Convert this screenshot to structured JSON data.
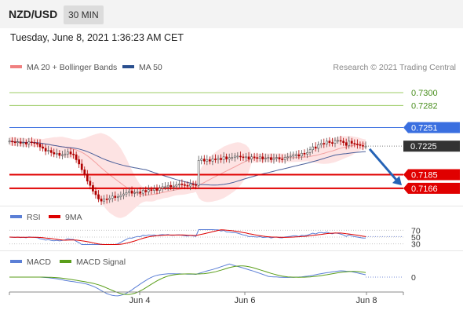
{
  "header": {
    "symbol": "NZD/USD",
    "timeframe": "30 MIN"
  },
  "datetime": "Tuesday, June 8, 2021 1:36:23 AM CET",
  "legend_main": [
    {
      "label": "MA 20 + Bollinger Bands",
      "color": "#f08080"
    },
    {
      "label": "MA 50",
      "color": "#2a4f8f"
    }
  ],
  "credit": "Research © 2021 Trading Central",
  "legend_rsi": [
    {
      "label": "RSI",
      "color": "#5b7fd6"
    },
    {
      "label": "9MA",
      "color": "#dd0000"
    }
  ],
  "legend_macd": [
    {
      "label": "MACD",
      "color": "#5b7fd6"
    },
    {
      "label": "MACD Signal",
      "color": "#5a9e1a"
    }
  ],
  "colors": {
    "resistance_green": "#9ccc65",
    "resistance_blue": "#3a6fe0",
    "support_red": "#e00000",
    "candle_up": "#555555",
    "candle_down": "#b00000",
    "band_fill": "#fde3e3",
    "arrow": "#2563b6"
  },
  "chart_data": {
    "type": "candlestick",
    "price_range": [
      0.7146,
      0.7322
    ],
    "levels": [
      {
        "value": 0.73,
        "label": "0.7300",
        "kind": "resistance-2",
        "color": "#9ccc65"
      },
      {
        "value": 0.7282,
        "label": "0.7282",
        "kind": "resistance-1",
        "color": "#9ccc65"
      },
      {
        "value": 0.7251,
        "label": "0.7251",
        "kind": "pivot",
        "color": "#3a6fe0"
      },
      {
        "value": 0.7225,
        "label": "0.7225",
        "kind": "last-price",
        "color": "#333333"
      },
      {
        "value": 0.7185,
        "label": "0.7185",
        "kind": "support-1",
        "color": "#e00000"
      },
      {
        "value": 0.7166,
        "label": "0.7166",
        "kind": "support-2",
        "color": "#e00000"
      }
    ],
    "x_ticks": [
      "Jun 4",
      "Jun 6",
      "Jun 8"
    ],
    "close": [
      0.7232,
      0.7231,
      0.723,
      0.7231,
      0.7229,
      0.723,
      0.7228,
      0.7231,
      0.723,
      0.7229,
      0.7228,
      0.7224,
      0.7222,
      0.7218,
      0.7219,
      0.7216,
      0.7214,
      0.7215,
      0.7212,
      0.7213,
      0.7214,
      0.7217,
      0.7214,
      0.7213,
      0.7206,
      0.72,
      0.7192,
      0.7186,
      0.7176,
      0.717,
      0.7162,
      0.7157,
      0.7151,
      0.7148,
      0.7151,
      0.715,
      0.7152,
      0.7155,
      0.7153,
      0.7154,
      0.7156,
      0.7158,
      0.716,
      0.7162,
      0.7159,
      0.716,
      0.7161,
      0.7159,
      0.7163,
      0.7161,
      0.7164,
      0.7163,
      0.7165,
      0.7163,
      0.7166,
      0.7168,
      0.7168,
      0.717,
      0.7168,
      0.7169,
      0.7171,
      0.7172,
      0.7171,
      0.717,
      0.7169,
      0.7172,
      0.7171,
      0.717,
      0.7205,
      0.7207,
      0.7204,
      0.7206,
      0.7204,
      0.7207,
      0.7206,
      0.7208,
      0.7206,
      0.721,
      0.7207,
      0.7209,
      0.7209,
      0.7211,
      0.7211,
      0.721,
      0.7209,
      0.721,
      0.7207,
      0.721,
      0.7209,
      0.7208,
      0.721,
      0.7207,
      0.7208,
      0.7209,
      0.7206,
      0.7208,
      0.7209,
      0.7207,
      0.7206,
      0.7209,
      0.721,
      0.7211,
      0.7213,
      0.7213,
      0.7211,
      0.7215,
      0.7214,
      0.7216,
      0.722,
      0.7224,
      0.7222,
      0.7227,
      0.7229,
      0.7228,
      0.7232,
      0.723,
      0.7229,
      0.7233,
      0.7233,
      0.7232,
      0.723,
      0.7226,
      0.7232,
      0.7229,
      0.7228,
      0.7227,
      0.7226,
      0.7225,
      0.7225
    ],
    "rsi": {
      "ticks": [
        70,
        50,
        30
      ],
      "rsi_start": 48,
      "rsi_end": 46,
      "ma9_end": 47
    },
    "macd": {
      "ticks": [
        0
      ]
    }
  }
}
